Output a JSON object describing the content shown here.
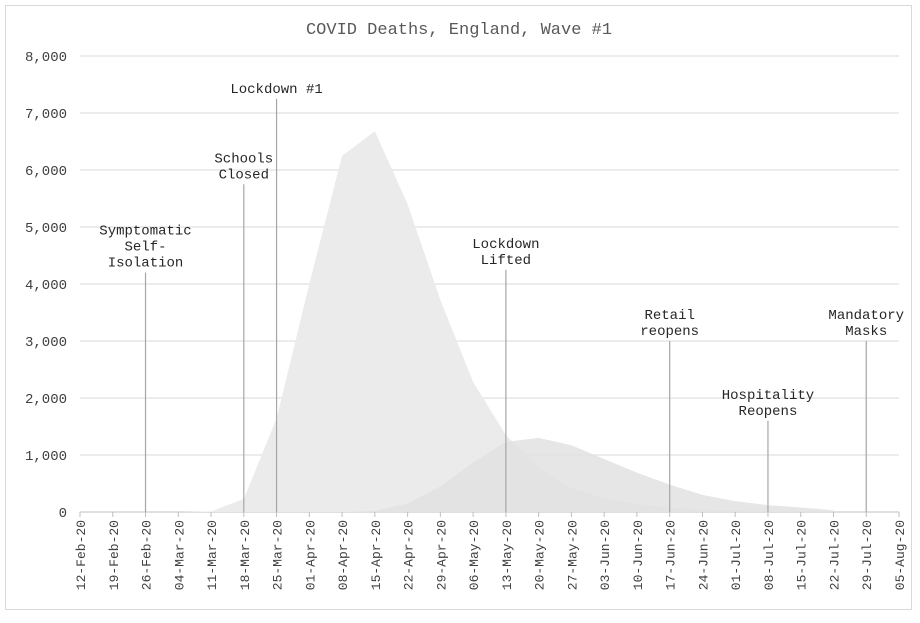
{
  "chart_data": {
    "type": "area",
    "title": "COVID Deaths, England, Wave #1",
    "xlabel": "",
    "ylabel": "",
    "ylim": [
      0,
      8000
    ],
    "yticks": [
      "0",
      "1,000",
      "2,000",
      "3,000",
      "4,000",
      "5,000",
      "6,000",
      "7,000",
      "8,000"
    ],
    "grid": true,
    "legend": "none",
    "categories": [
      "12-Feb-20",
      "19-Feb-20",
      "26-Feb-20",
      "04-Mar-20",
      "11-Mar-20",
      "18-Mar-20",
      "25-Mar-20",
      "01-Apr-20",
      "08-Apr-20",
      "15-Apr-20",
      "22-Apr-20",
      "29-Apr-20",
      "06-May-20",
      "13-May-20",
      "20-May-20",
      "27-May-20",
      "03-Jun-20",
      "10-Jun-20",
      "17-Jun-20",
      "24-Jun-20",
      "01-Jul-20",
      "08-Jul-20",
      "15-Jul-20",
      "22-Jul-20",
      "29-Jul-20",
      "05-Aug-20"
    ],
    "series": [
      {
        "color": "#ebebeb",
        "values": [
          0,
          0,
          0,
          0,
          10,
          230,
          1640,
          4000,
          6250,
          6680,
          5400,
          3720,
          2280,
          1350,
          780,
          420,
          240,
          140,
          80,
          40,
          20,
          10,
          5,
          0,
          null,
          null
        ]
      },
      {
        "color": "#e2e2e2",
        "values": [
          0,
          0,
          0,
          0,
          0,
          0,
          0,
          0,
          0,
          20,
          150,
          450,
          870,
          1230,
          1300,
          1170,
          930,
          690,
          480,
          300,
          190,
          120,
          80,
          30,
          null,
          null
        ]
      }
    ],
    "annotations": [
      {
        "lines": [
          "Symptomatic",
          "Self-",
          "Isolation"
        ],
        "x": "26-Feb-20",
        "y": 4200
      },
      {
        "lines": [
          "Schools",
          "Closed"
        ],
        "x": "18-Mar-20",
        "y": 5750
      },
      {
        "lines": [
          "Lockdown #1"
        ],
        "x": "25-Mar-20",
        "y": 7250
      },
      {
        "lines": [
          "Lockdown",
          "Lifted"
        ],
        "x": "13-May-20",
        "y": 4250
      },
      {
        "lines": [
          "Retail",
          "reopens"
        ],
        "x": "17-Jun-20",
        "y": 3000
      },
      {
        "lines": [
          "Hospitality",
          "Reopens"
        ],
        "x": "08-Jul-20",
        "y": 1600
      },
      {
        "lines": [
          "Mandatory",
          "Masks"
        ],
        "x": "29-Jul-20",
        "y": 3000
      }
    ]
  }
}
